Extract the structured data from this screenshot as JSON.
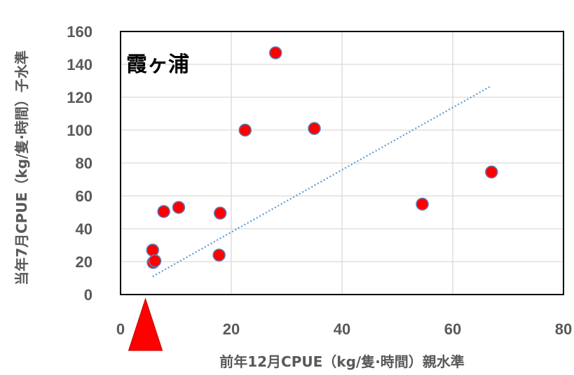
{
  "chart_data": {
    "type": "scatter",
    "title": "霞ヶ浦",
    "xlabel": "前年12月CPUE（kg/隻·時間）親水準",
    "ylabel": "当年7月CPUE（kg/隻·時間）子水準",
    "xlim": [
      0,
      80
    ],
    "ylim": [
      0,
      160
    ],
    "x_ticks": [
      0,
      20,
      40,
      60,
      80
    ],
    "y_ticks": [
      0,
      20,
      40,
      60,
      80,
      100,
      120,
      140,
      160
    ],
    "grid": true,
    "points": [
      {
        "x": 5.8,
        "y": 27
      },
      {
        "x": 5.9,
        "y": 19.5
      },
      {
        "x": 6.2,
        "y": 20.5
      },
      {
        "x": 7.8,
        "y": 50.5
      },
      {
        "x": 10.5,
        "y": 53
      },
      {
        "x": 17.8,
        "y": 24
      },
      {
        "x": 18,
        "y": 49.5
      },
      {
        "x": 22.5,
        "y": 100
      },
      {
        "x": 28,
        "y": 147
      },
      {
        "x": 35,
        "y": 101
      },
      {
        "x": 54.5,
        "y": 55
      },
      {
        "x": 67,
        "y": 74.5
      }
    ],
    "trendline": {
      "x": [
        5.8,
        67
      ],
      "y": [
        11,
        127
      ],
      "style": "dotted"
    },
    "marker": {
      "x": 4.5
    },
    "colors": {
      "point_fill": "#ff0000",
      "point_stroke": "#5b7fbf",
      "trendline": "#5b9bd5",
      "grid": "#d9d9d9",
      "frame": "#000000",
      "marker": "#ff0000",
      "text": "#595959"
    }
  }
}
